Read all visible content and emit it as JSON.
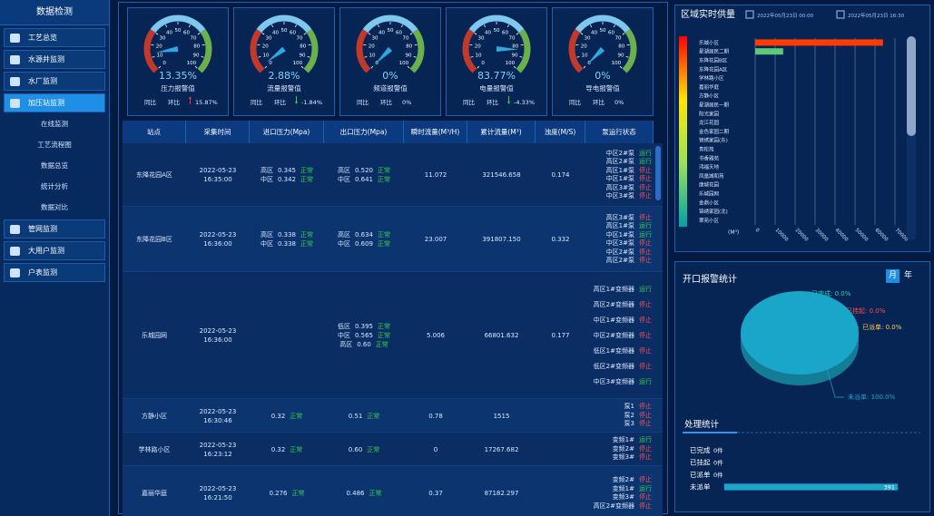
{
  "sidebar": {
    "title": "数据检测",
    "menu": [
      {
        "label": "工艺总览"
      },
      {
        "label": "水源井监测"
      },
      {
        "label": "水厂监测"
      },
      {
        "label": "加压站监测",
        "active": true,
        "children": [
          "在线监测",
          "工艺流程图",
          "数据总览",
          "统计分析",
          "数据对比"
        ]
      },
      {
        "label": "管网监测"
      },
      {
        "label": "大用户监测"
      },
      {
        "label": "户表监测"
      }
    ]
  },
  "gauges": {
    "ticks": [
      0,
      10,
      20,
      30,
      40,
      50,
      60,
      70,
      80,
      90,
      100
    ],
    "items": [
      {
        "value": 13.35,
        "value_label": "13.35%",
        "title": "压力报警值",
        "compare_label": "同比",
        "ratio_label": "环比",
        "change": 15.87,
        "change_label": "15.87%"
      },
      {
        "value": 2.88,
        "value_label": "2.88%",
        "title": "流量报警值",
        "compare_label": "同比",
        "ratio_label": "环比",
        "change": -1.84,
        "change_label": "-1.84%"
      },
      {
        "value": 0,
        "value_label": "0%",
        "title": "频道报警值",
        "compare_label": "同比",
        "ratio_label": "环比",
        "change": 0,
        "change_label": "0%"
      },
      {
        "value": 83.77,
        "value_label": "83.77%",
        "title": "电量报警值",
        "compare_label": "同比",
        "ratio_label": "环比",
        "change": -4.33,
        "change_label": "-4.33%"
      },
      {
        "value": 0,
        "value_label": "0%",
        "title": "导电报警值",
        "compare_label": "同比",
        "ratio_label": "环比",
        "change": 0,
        "change_label": "0%"
      }
    ]
  },
  "table": {
    "headers": [
      "站点",
      "采集时间",
      "进口压力(Mpa)",
      "出口压力(Mpa)",
      "瞬时流量(M³/H)",
      "累计流量(M³)",
      "浊度(M/S)",
      "泵运行状态"
    ],
    "rows": [
      {
        "site": "东降花园A区",
        "time": "2022-05-23 16:35:00",
        "inlet": [
          {
            "zone": "高区",
            "value": "0.345",
            "status": "正常"
          },
          {
            "zone": "中区",
            "value": "0.342",
            "status": "正常"
          }
        ],
        "outlet": [
          {
            "zone": "高区",
            "value": "0.520",
            "status": "正常"
          },
          {
            "zone": "中区",
            "value": "0.641",
            "status": "正常"
          }
        ],
        "flow": "11.072",
        "total": "321546.658",
        "turbidity": "0.174",
        "pumps": [
          {
            "name": "中区2#泵",
            "state": "运行",
            "color": "#35d04a"
          },
          {
            "name": "高区2#泵",
            "state": "运行",
            "color": "#35d04a"
          },
          {
            "name": "高区1#泵",
            "state": "停止",
            "color": "#ff4d4d"
          },
          {
            "name": "中区1#泵",
            "state": "停止",
            "color": "#ff4d4d"
          },
          {
            "name": "高区3#泵",
            "state": "停止",
            "color": "#ff4d4d"
          },
          {
            "name": "中区3#泵",
            "state": "停止",
            "color": "#ff4d4d"
          }
        ]
      },
      {
        "site": "东降花园B区",
        "time": "2022-05-23 16:36:00",
        "inlet": [
          {
            "zone": "高区",
            "value": "0.338",
            "status": "正常"
          },
          {
            "zone": "中区",
            "value": "0.338",
            "status": "正常"
          }
        ],
        "outlet": [
          {
            "zone": "高区",
            "value": "0.634",
            "status": "正常"
          },
          {
            "zone": "中区",
            "value": "0.609",
            "status": "正常"
          }
        ],
        "flow": "23.007",
        "total": "391807.150",
        "turbidity": "0.332",
        "pumps": [
          {
            "name": "高区3#泵",
            "state": "停止",
            "color": "#ff4d4d"
          },
          {
            "name": "高区1#泵",
            "state": "运行",
            "color": "#35d04a"
          },
          {
            "name": "中区1#泵",
            "state": "运行",
            "color": "#35d04a"
          },
          {
            "name": "中区3#泵",
            "state": "停止",
            "color": "#ff4d4d"
          },
          {
            "name": "中区2#泵",
            "state": "停止",
            "color": "#ff4d4d"
          },
          {
            "name": "高区2#泵",
            "state": "停止",
            "color": "#ff4d4d"
          }
        ]
      },
      {
        "site": "乐城园网",
        "time": "2022-05-23 16:36:00",
        "inlet": [],
        "outlet": [
          {
            "zone": "低区",
            "value": "0.395",
            "status": "正常"
          },
          {
            "zone": "中区",
            "value": "0.565",
            "status": "正常"
          },
          {
            "zone": "高区",
            "value": "0.60",
            "status": "正常"
          }
        ],
        "flow": "5.006",
        "total": "66801.632",
        "turbidity": "0.177",
        "pumps": [
          {
            "name": "高区1#变频器",
            "state": "运行",
            "color": "#35d04a"
          },
          {
            "name": "高区2#变频器",
            "state": "停止",
            "color": "#ff4d4d"
          },
          {
            "name": "中区1#变频器",
            "state": "停止",
            "color": "#ff4d4d"
          },
          {
            "name": "中区2#变频器",
            "state": "停止",
            "color": "#ff4d4d"
          },
          {
            "name": "低区1#变频器",
            "state": "停止",
            "color": "#ff4d4d"
          },
          {
            "name": "低区2#变频器",
            "state": "停止",
            "color": "#ff4d4d"
          },
          {
            "name": "中区3#变频器",
            "state": "运行",
            "color": "#35d04a"
          }
        ]
      },
      {
        "site": "方静小区",
        "time": "2022-05-23 16:30:46",
        "inlet": [
          {
            "zone": "",
            "value": "0.32",
            "status": "正常"
          }
        ],
        "outlet": [
          {
            "zone": "",
            "value": "0.51",
            "status": "正常"
          }
        ],
        "flow": "0.78",
        "total": "1515",
        "turbidity": "",
        "pumps": [
          {
            "name": "泵1",
            "state": "停止",
            "color": "#ff4d4d"
          },
          {
            "name": "泵2",
            "state": "停止",
            "color": "#ff4d4d"
          },
          {
            "name": "泵3",
            "state": "停止",
            "color": "#ff4d4d"
          }
        ]
      },
      {
        "site": "学林路小区",
        "time": "2022-05-23 16:23:12",
        "inlet": [
          {
            "zone": "",
            "value": "0.32",
            "status": "正常"
          }
        ],
        "outlet": [
          {
            "zone": "",
            "value": "0.60",
            "status": "正常"
          }
        ],
        "flow": "0",
        "total": "17267.682",
        "turbidity": "",
        "pumps": [
          {
            "name": "变频1#",
            "state": "运行",
            "color": "#35d04a"
          },
          {
            "name": "变频2#",
            "state": "停止",
            "color": "#ff4d4d"
          },
          {
            "name": "变频3#",
            "state": "停止",
            "color": "#ff4d4d"
          }
        ]
      },
      {
        "site": "嘉丽华庭",
        "time": "2022-05-23 16:21:50",
        "inlet": [
          {
            "zone": "",
            "value": "0.276",
            "status": "正常"
          }
        ],
        "outlet": [
          {
            "zone": "",
            "value": "0.486",
            "status": "正常"
          }
        ],
        "flow": "0.37",
        "total": "87182.297",
        "turbidity": "",
        "pumps": [
          {
            "name": "变频2#",
            "state": "停止",
            "color": "#ff4d4d"
          },
          {
            "name": "变频1#",
            "state": "运行",
            "color": "#35d04a"
          },
          {
            "name": "变频3#",
            "state": "停止",
            "color": "#ff4d4d"
          },
          {
            "name": "高区2#变频器",
            "state": "停止",
            "color": "#ff4d4d"
          }
        ]
      }
    ]
  },
  "chart_data": [
    {
      "type": "bar",
      "orientation": "horizontal",
      "title": "区域实时供量",
      "start_time": "2022年05月23日 00:00",
      "end_time": "2022年05月23日 16:30",
      "categories": [
        "乐城小区",
        "星湖居民二期",
        "东降花园B区",
        "东降花园A区",
        "学林路小区",
        "嘉丽华庭",
        "方静小区",
        "星湖居民一期",
        "阳光家园",
        "龙江花园",
        "金色家园二期",
        "锦绣家园(东)",
        "青松苑",
        "书香雅苑",
        "鸿福天地",
        "凤凰城和苑",
        "康城花园",
        "乐城园网",
        "金鼎小区",
        "锦绣家园(北)",
        "翠苑小区"
      ],
      "values": [
        64000,
        14000,
        0,
        0,
        0,
        0,
        0,
        0,
        0,
        0,
        0,
        0,
        0,
        0,
        0,
        0,
        0,
        0,
        0,
        0,
        0
      ],
      "xlim": [
        0,
        70000
      ],
      "xticks": [
        0,
        10000,
        20000,
        30000,
        40000,
        50000,
        60000,
        70000
      ],
      "x_label": "(M³)",
      "visual_colors": [
        "#00a3a3",
        "#9be05a",
        "#ffe600",
        "#ff0000"
      ],
      "grid": true
    },
    {
      "type": "pie",
      "title": "开口报警统计",
      "toggle": [
        "月",
        "年"
      ],
      "categories": [
        "已完成",
        "已挂起",
        "已派单",
        "未派单"
      ],
      "values": [
        0,
        0,
        0,
        100
      ],
      "value_labels": [
        "已完成: 0.0%",
        "已挂起: 0.0%",
        "已派单: 0.0%",
        "未派单: 100.0%"
      ],
      "colors": [
        "#2ad6b4",
        "#ff4d4d",
        "#ffd24d",
        "#1aa6c8"
      ]
    },
    {
      "type": "bar",
      "orientation": "horizontal",
      "title": "处理统计",
      "categories": [
        "已完成",
        "已挂起",
        "已派单",
        "未派单"
      ],
      "values": [
        0,
        0,
        0,
        391
      ],
      "value_labels": [
        "0件",
        "0件",
        "0件",
        "391"
      ],
      "xlim": [
        0,
        391
      ],
      "color": "#1aa6c8"
    }
  ]
}
